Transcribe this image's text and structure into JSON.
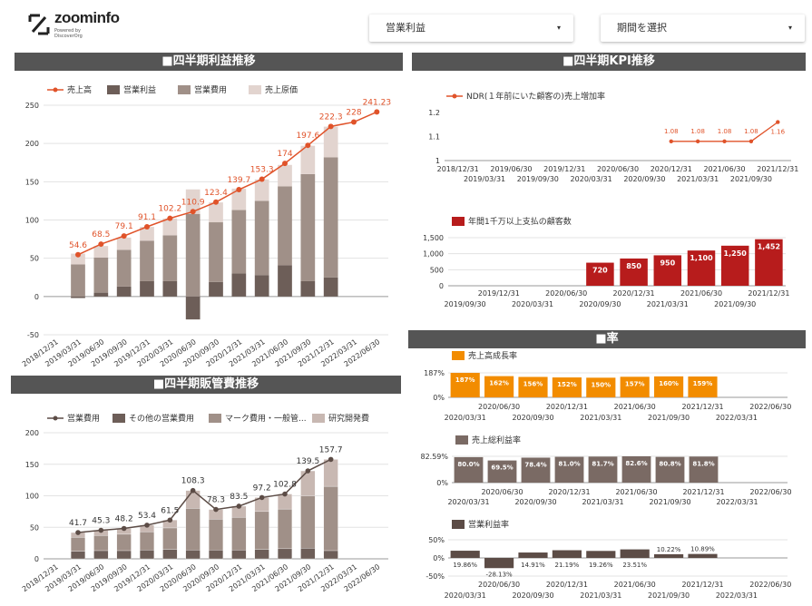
{
  "header": {
    "brand": "zoominfo",
    "brand_sub": "Powered by DiscoverOrg",
    "metric_select": {
      "value": "営業利益"
    },
    "period_select": {
      "value": "期間を選択"
    }
  },
  "sections": {
    "profit": "■四半期利益推移",
    "kpi": "■四半期KPI推移",
    "sga": "■四半期販管費推移",
    "rate": "■率"
  },
  "colors": {
    "header_bg": "#555555",
    "revenue_line": "#E0532A",
    "op_profit": "#6D5E58",
    "op_cost": "#A09088",
    "cogs": "#E2D4CF",
    "ndr_line": "#E0532A",
    "customers_bar": "#B71C1C",
    "growth_bar": "#F28C00",
    "gross_margin_bar": "#7A6A64",
    "op_margin_bar": "#5C4C46",
    "sga_line": "#5C4C46",
    "sga_other": "#6D5E58",
    "sga_mkt": "#A09088",
    "sga_rd": "#C8B8B2"
  },
  "chart_data": [
    {
      "id": "profit",
      "type": "bar",
      "categories": [
        "2018/12/31",
        "2019/03/31",
        "2019/06/30",
        "2019/09/30",
        "2019/12/31",
        "2020/03/31",
        "2020/06/30",
        "2020/09/30",
        "2020/12/31",
        "2021/03/31",
        "2021/06/30",
        "2021/09/30",
        "2021/12/31",
        "2022/03/31",
        "2022/06/30"
      ],
      "ylim": [
        -50,
        250
      ],
      "yticks": [
        -50,
        0,
        50,
        100,
        150,
        200,
        250
      ],
      "series": [
        {
          "name": "売上高",
          "kind": "line",
          "values": [
            null,
            54.6,
            68.5,
            79.1,
            91.1,
            102.2,
            110.9,
            123.4,
            139.7,
            153.3,
            174,
            197.6,
            222.3,
            228,
            241.23
          ]
        },
        {
          "name": "営業利益",
          "kind": "bar",
          "values": [
            null,
            -2,
            5,
            13,
            20,
            20,
            -30,
            19,
            30,
            28,
            41,
            20,
            25,
            null,
            null
          ]
        },
        {
          "name": "営業費用",
          "kind": "bar",
          "values": [
            null,
            42,
            46,
            48,
            53,
            60,
            108,
            78,
            83,
            97,
            103,
            140,
            157,
            null,
            null
          ]
        },
        {
          "name": "売上原価",
          "kind": "bar",
          "values": [
            null,
            14,
            15,
            16,
            18,
            22,
            32,
            26,
            28,
            28,
            28,
            37,
            40,
            null,
            null
          ]
        }
      ],
      "data_labels": [
        "",
        "54.6",
        "68.5",
        "79.1",
        "91.1",
        "102.2",
        "110.9",
        "123.4",
        "139.7",
        "153.3",
        "174",
        "197.6",
        "222.3",
        "228",
        "241.23"
      ]
    },
    {
      "id": "ndr",
      "type": "line",
      "categories": [
        "2018/12/31",
        "2019/03/31",
        "2019/06/30",
        "2019/09/30",
        "2019/12/31",
        "2020/03/31",
        "2020/06/30",
        "2020/09/30",
        "2020/12/31",
        "2021/03/31",
        "2021/06/30",
        "2021/09/30",
        "2021/12/31"
      ],
      "ylim": [
        1,
        1.2
      ],
      "yticks": [
        1,
        1.1,
        1.2
      ],
      "series": [
        {
          "name": "NDR(１年前にいた顧客の)売上増加率",
          "values": [
            null,
            null,
            null,
            null,
            null,
            null,
            null,
            null,
            1.08,
            1.08,
            1.08,
            1.08,
            1.16
          ]
        }
      ],
      "data_labels": [
        "",
        "",
        "",
        "",
        "",
        "",
        "",
        "",
        "1.08",
        "1.08",
        "1.08",
        "1.08",
        "1.16"
      ]
    },
    {
      "id": "customers",
      "type": "bar",
      "categories": [
        "2019/09/30",
        "2019/12/31",
        "2020/03/31",
        "2020/06/30",
        "2020/09/30",
        "2020/12/31",
        "2021/03/31",
        "2021/06/30",
        "2021/09/30",
        "2021/12/31"
      ],
      "ylim": [
        0,
        1500
      ],
      "yticks": [
        0,
        500,
        1000,
        1500
      ],
      "ytick_labels": [
        "0",
        "500",
        "1,000",
        "1,500"
      ],
      "series": [
        {
          "name": "年間1千万以上支払の顧客数",
          "values": [
            null,
            null,
            null,
            null,
            720,
            850,
            950,
            1100,
            1250,
            1452
          ]
        }
      ],
      "data_labels": [
        "",
        "",
        "",
        "",
        "720",
        "850",
        "950",
        "1,100",
        "1,250",
        "1,452"
      ]
    },
    {
      "id": "sga",
      "type": "bar",
      "categories": [
        "2018/12/31",
        "2019/03/31",
        "2019/06/30",
        "2019/09/30",
        "2019/12/31",
        "2020/03/31",
        "2020/06/30",
        "2020/09/30",
        "2020/12/31",
        "2021/03/31",
        "2021/06/30",
        "2021/09/30",
        "2021/12/31",
        "2022/03/31",
        "2022/06/30"
      ],
      "ylim": [
        0,
        200
      ],
      "yticks": [
        0,
        50,
        100,
        150,
        200
      ],
      "series": [
        {
          "name": "営業費用",
          "kind": "line",
          "values": [
            null,
            41.7,
            45.3,
            48.2,
            53.4,
            61.5,
            108.3,
            78.3,
            83.5,
            97.2,
            102.8,
            139.5,
            157.7,
            null,
            null
          ]
        },
        {
          "name": "その他の営業費用",
          "kind": "bar",
          "values": [
            null,
            12,
            13,
            13,
            14,
            15,
            14,
            14,
            14,
            15,
            16,
            17,
            13,
            null,
            null
          ]
        },
        {
          "name": "マーク費用・一般管...",
          "kind": "bar",
          "values": [
            null,
            22,
            24,
            26,
            29,
            34,
            66,
            49,
            52,
            60,
            63,
            83,
            102,
            null,
            null
          ]
        },
        {
          "name": "研究開発費",
          "kind": "bar",
          "values": [
            null,
            7.7,
            8.3,
            9.2,
            10.4,
            12.5,
            28.3,
            15.3,
            17.5,
            22.2,
            23.8,
            39.5,
            42.7,
            null,
            null
          ]
        }
      ],
      "data_labels": [
        "",
        "41.7",
        "45.3",
        "48.2",
        "53.4",
        "61.5",
        "108.3",
        "78.3",
        "83.5",
        "97.2",
        "102.8",
        "139.5",
        "157.7",
        "",
        ""
      ]
    },
    {
      "id": "growth",
      "type": "bar",
      "categories": [
        "2020/03/31",
        "2020/06/30",
        "2020/09/30",
        "2020/12/31",
        "2021/03/31",
        "2021/06/30",
        "2021/09/30",
        "2021/12/31",
        "2022/03/31",
        "2022/06/30"
      ],
      "ylim": [
        0,
        187
      ],
      "yticks": [
        0,
        187
      ],
      "ytick_labels": [
        "0%",
        "187%"
      ],
      "series": [
        {
          "name": "売上高成長率",
          "values": [
            187,
            162,
            156,
            152,
            150,
            157,
            160,
            159,
            null,
            null
          ]
        }
      ],
      "data_labels": [
        "187%",
        "162%",
        "156%",
        "152%",
        "150%",
        "157%",
        "160%",
        "159%",
        "",
        ""
      ]
    },
    {
      "id": "gross_margin",
      "type": "bar",
      "categories": [
        "2020/03/31",
        "2020/06/30",
        "2020/09/30",
        "2020/12/31",
        "2021/03/31",
        "2021/06/30",
        "2021/09/30",
        "2021/12/31",
        "2022/03/31",
        "2022/06/30"
      ],
      "ylim": [
        0,
        82.59
      ],
      "yticks": [
        0,
        82.59
      ],
      "ytick_labels": [
        "0%",
        "82.59%"
      ],
      "series": [
        {
          "name": "売上総利益率",
          "values": [
            80.0,
            69.5,
            78.4,
            81.0,
            81.7,
            82.6,
            80.8,
            81.8,
            null,
            null
          ]
        }
      ],
      "data_labels": [
        "80.0%",
        "69.5%",
        "78.4%",
        "81.0%",
        "81.7%",
        "82.6%",
        "80.8%",
        "81.8%",
        "",
        ""
      ]
    },
    {
      "id": "op_margin",
      "type": "bar",
      "categories": [
        "2020/03/31",
        "2020/06/30",
        "2020/09/30",
        "2020/12/31",
        "2021/03/31",
        "2021/06/30",
        "2021/09/30",
        "2021/12/31",
        "2022/03/31",
        "2022/06/30"
      ],
      "ylim": [
        -50,
        50
      ],
      "yticks": [
        -50,
        0,
        50
      ],
      "ytick_labels": [
        "-50%",
        "0%",
        "50%"
      ],
      "series": [
        {
          "name": "営業利益率",
          "values": [
            19.86,
            -28.13,
            14.91,
            21.19,
            19.26,
            23.51,
            10.22,
            10.89,
            null,
            null
          ]
        }
      ],
      "data_labels": [
        "19.86%",
        "-28.13%",
        "14.91%",
        "21.19%",
        "19.26%",
        "23.51%",
        "10.22%",
        "10.89%",
        "",
        ""
      ]
    }
  ]
}
